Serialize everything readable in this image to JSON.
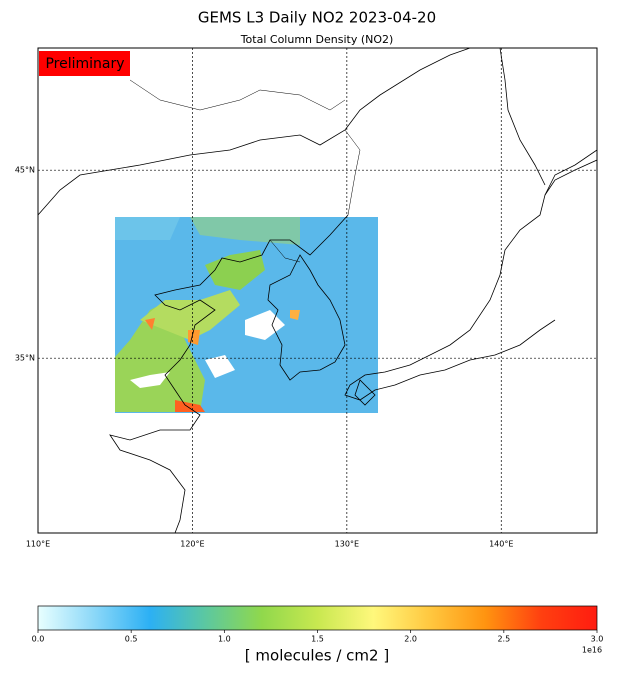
{
  "chart_data": {
    "type": "map",
    "title": "GEMS L3 Daily NO2 2023-04-20",
    "subtitle": "Total Column Density (NO2)",
    "badge": "Preliminary",
    "badge_color": "#ff0000",
    "xlim": [
      110,
      146.2
    ],
    "ylim": [
      25.7,
      51.5
    ],
    "xticks": [
      {
        "value": 110,
        "label": "110°E"
      },
      {
        "value": 120,
        "label": "120°E"
      },
      {
        "value": 130,
        "label": "130°E"
      },
      {
        "value": 140,
        "label": "140°E"
      }
    ],
    "yticks": [
      {
        "value": 35,
        "label": "35°N"
      },
      {
        "value": 45,
        "label": "45°N"
      }
    ],
    "grid": true,
    "colorbar": {
      "clim": [
        0,
        3
      ],
      "ticks": [
        {
          "value": 0,
          "label": "0.0"
        },
        {
          "value": 0.5,
          "label": "0.5"
        },
        {
          "value": 1,
          "label": "1.0"
        },
        {
          "value": 1.5,
          "label": "1.5"
        },
        {
          "value": 2,
          "label": "2.0"
        },
        {
          "value": 2.5,
          "label": "2.5"
        },
        {
          "value": 3,
          "label": "3.0"
        }
      ],
      "colormap": [
        "#e8ffff",
        "#8cd8f8",
        "#2cb0f4",
        "#5cc8a0",
        "#90d84c",
        "#c8e850",
        "#fff87c",
        "#ffc840",
        "#ff9410",
        "#ff4010",
        "#ff1c10"
      ],
      "offset": "1e16",
      "label": "[ molecules / cm2 ]"
    }
  }
}
